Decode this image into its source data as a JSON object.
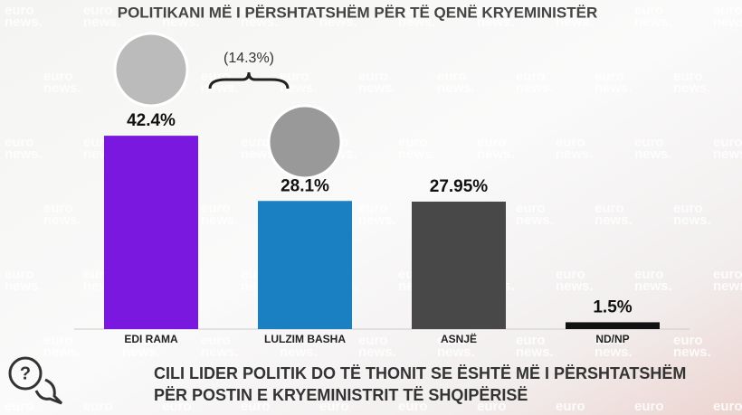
{
  "chart_data": {
    "type": "bar",
    "title": "POLITIKANI MË I PËRSHTATSHËM PËR TË QENË KRYEMINISTËR",
    "categories": [
      "EDI RAMA",
      "LULZIM BASHA",
      "ASNJË",
      "ND/NP"
    ],
    "values": [
      42.4,
      28.1,
      27.95,
      1.5
    ],
    "value_labels": [
      "42.4%",
      "28.1%",
      "27.95%",
      "1.5%"
    ],
    "colors": [
      "#7b18e0",
      "#1a80c2",
      "#484848",
      "#111111"
    ],
    "ylim": [
      0,
      45
    ],
    "annotation": "(14.3%)",
    "question": [
      "CILI LIDER POLITIK DO TË THONIT SE ËSHTË MË I PËRSHTATSHËM",
      "PËR POSTIN E KRYEMINISTRIT TË SHQIPËRISË"
    ],
    "watermark": [
      "euro",
      "news."
    ]
  }
}
